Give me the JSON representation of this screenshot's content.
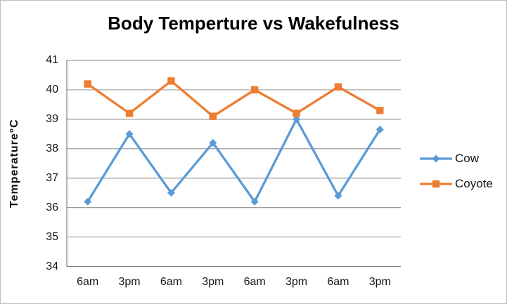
{
  "chart_data": {
    "type": "line",
    "title": "Body Temperture vs Wakefulness",
    "ylabel": "Temperature°C",
    "xlabel": "",
    "categories": [
      "6am",
      "3pm",
      "6am",
      "3pm",
      "6am",
      "3pm",
      "6am",
      "3pm"
    ],
    "series": [
      {
        "name": "Cow",
        "color": "#5B9BD5",
        "marker": "diamond",
        "values": [
          36.2,
          38.5,
          36.5,
          38.2,
          36.2,
          39.0,
          36.4,
          38.65
        ]
      },
      {
        "name": "Coyote",
        "color": "#ED7D31",
        "marker": "square",
        "values": [
          40.2,
          39.2,
          40.3,
          39.1,
          40.0,
          39.2,
          40.1,
          39.3
        ]
      }
    ],
    "ylim": [
      34,
      41
    ],
    "yticks": [
      34,
      35,
      36,
      37,
      38,
      39,
      40,
      41
    ],
    "grid": true,
    "legend_position": "right",
    "colors": {
      "gridline": "#9d9d9d",
      "axis": "#7f7f7f",
      "tick_text": "#161616",
      "title_text": "#000000",
      "background": "#ffffff",
      "border": "#bfbfbf"
    }
  }
}
